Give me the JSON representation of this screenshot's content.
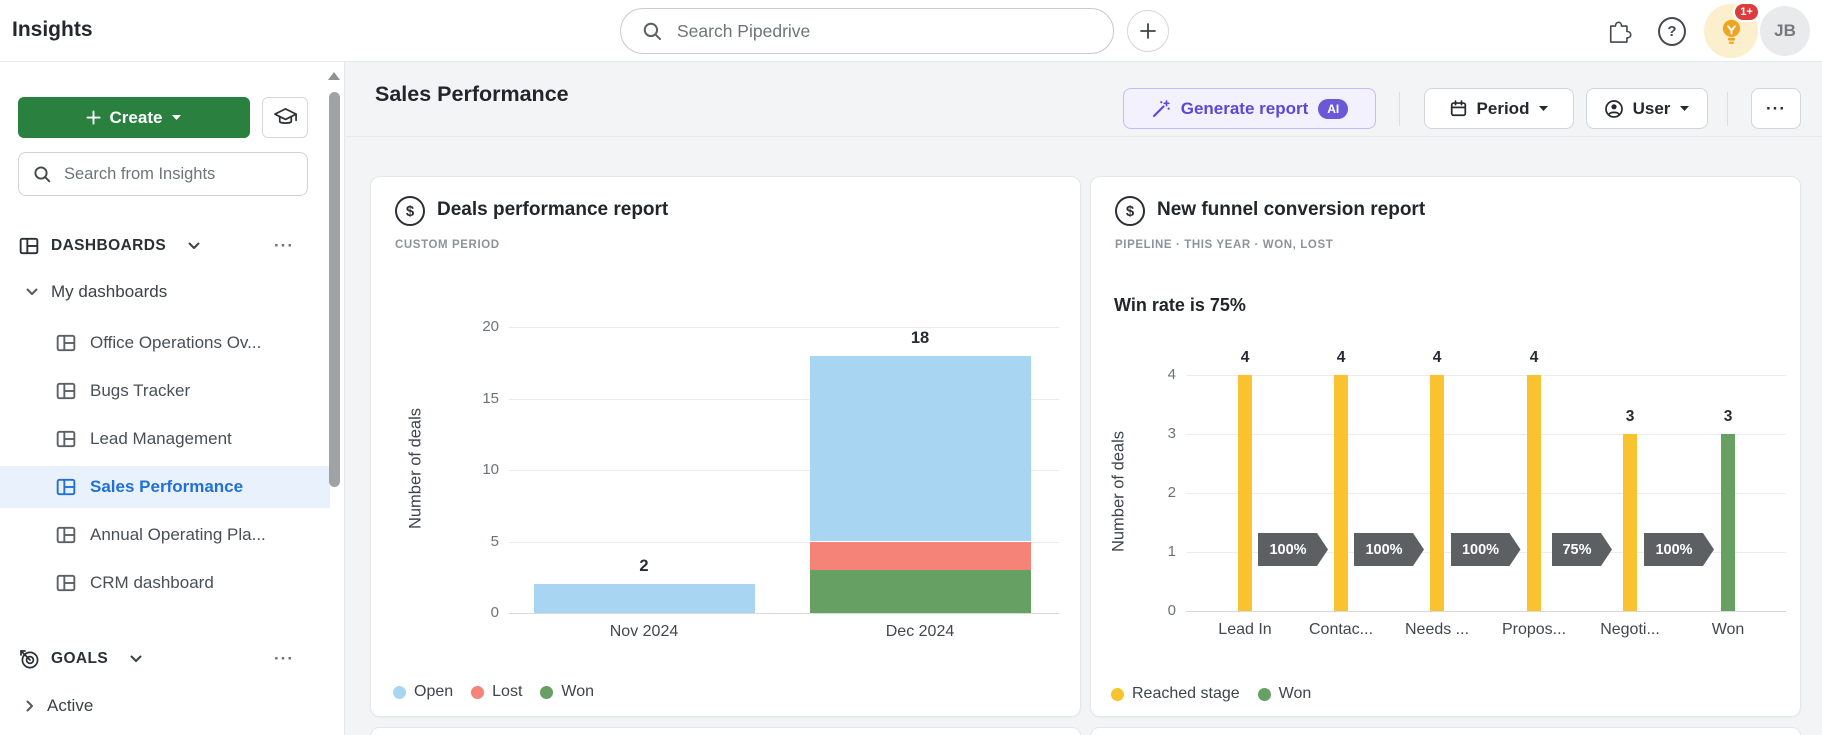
{
  "topbar": {
    "title": "Insights",
    "search_placeholder": "Search Pipedrive",
    "notification_badge": "1+",
    "avatar_initials": "JB",
    "help_glyph": "?"
  },
  "sidebar": {
    "create_label": "Create",
    "search_placeholder": "Search from Insights",
    "dashboards_label": "DASHBOARDS",
    "my_dashboards_label": "My dashboards",
    "items": [
      {
        "label": "Office Operations Ov..."
      },
      {
        "label": "Bugs Tracker"
      },
      {
        "label": "Lead Management"
      },
      {
        "label": "Sales Performance"
      },
      {
        "label": "Annual Operating Pla..."
      },
      {
        "label": "CRM dashboard"
      }
    ],
    "goals_label": "GOALS",
    "active_label": "Active",
    "overflow_glyph": "···"
  },
  "header": {
    "title": "Sales Performance",
    "generate_report_label": "Generate report",
    "ai_badge": "AI",
    "period_label": "Period",
    "user_label": "User",
    "more_glyph": "···"
  },
  "cards": {
    "dollar_glyph": "$"
  },
  "chart_data": [
    {
      "type": "bar",
      "stacked": true,
      "title": "Deals performance report",
      "subtitle": "CUSTOM PERIOD",
      "categories": [
        "Nov 2024",
        "Dec 2024"
      ],
      "series": [
        {
          "name": "Open",
          "color": "#a8d6f2",
          "values": [
            2,
            13
          ]
        },
        {
          "name": "Lost",
          "color": "#f58378",
          "values": [
            0,
            2
          ]
        },
        {
          "name": "Won",
          "color": "#66a163",
          "values": [
            0,
            3
          ]
        }
      ],
      "totals": [
        2,
        18
      ],
      "ylabel": "Number of deals",
      "ylim": [
        0,
        20
      ],
      "yticks": [
        0,
        5,
        10,
        15,
        20
      ],
      "legend": [
        {
          "label": "Open",
          "color": "#a8d6f2"
        },
        {
          "label": "Lost",
          "color": "#f58378"
        },
        {
          "label": "Won",
          "color": "#66a163"
        }
      ],
      "legend_position": "bottom-left",
      "grid": true
    },
    {
      "type": "bar",
      "stacked": false,
      "title": "New funnel conversion report",
      "subtitle": "PIPELINE · THIS YEAR · WON, LOST",
      "annotation": "Win rate is 75%",
      "categories": [
        "Lead In",
        "Contac...",
        "Needs ...",
        "Propos...",
        "Negoti...",
        "Won"
      ],
      "values": [
        4,
        4,
        4,
        4,
        3,
        3
      ],
      "bar_colors": [
        "#f9c32f",
        "#f9c32f",
        "#f9c32f",
        "#f9c32f",
        "#f9c32f",
        "#66a163"
      ],
      "stage_conversion_labels": [
        "100%",
        "100%",
        "100%",
        "75%",
        "100%"
      ],
      "ylabel": "Number of deals",
      "ylim": [
        0,
        4
      ],
      "yticks": [
        0,
        1,
        2,
        3,
        4
      ],
      "legend": [
        {
          "label": "Reached stage",
          "color": "#f9c32f"
        },
        {
          "label": "Won",
          "color": "#66a163"
        }
      ],
      "legend_position": "bottom-left",
      "grid": true
    }
  ]
}
